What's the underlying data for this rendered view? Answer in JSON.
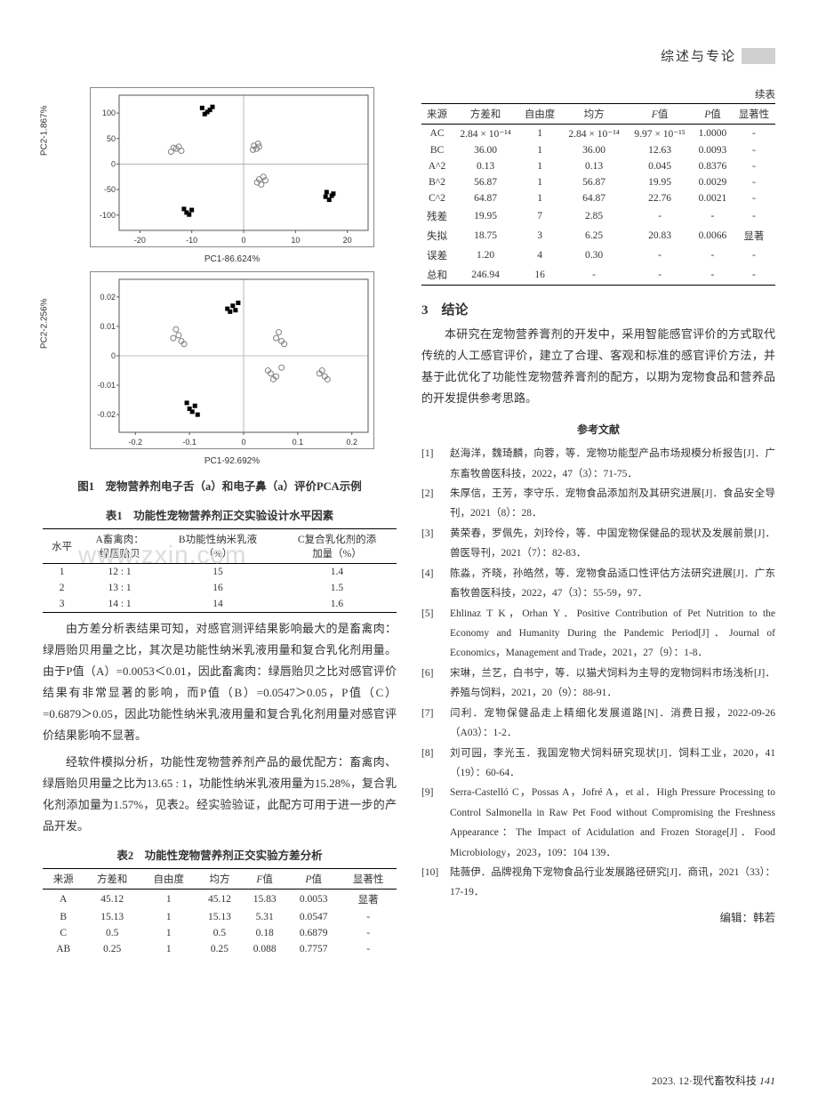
{
  "header": {
    "section": "综述与专论"
  },
  "chart_a": {
    "type": "scatter",
    "xlabel": "PC1-86.624%",
    "ylabel": "PC2-1.867%",
    "xticks": [
      -20,
      -10,
      0,
      10,
      20
    ],
    "yticks": [
      -100,
      -50,
      0,
      50,
      100
    ],
    "xlim": [
      -24,
      24
    ],
    "ylim": [
      -130,
      135
    ],
    "groups": [
      {
        "shape": "square",
        "color": "#000000",
        "points": [
          [
            -8,
            110
          ],
          [
            -7,
            102
          ],
          [
            -6.5,
            106
          ],
          [
            -6,
            112
          ],
          [
            -7.5,
            98
          ]
        ]
      },
      {
        "shape": "circle",
        "color": "#808080",
        "points": [
          [
            -13,
            30
          ],
          [
            -12,
            26
          ],
          [
            -12.5,
            34
          ],
          [
            -14,
            24
          ],
          [
            -13.5,
            32
          ]
        ]
      },
      {
        "shape": "circle",
        "color": "#808080",
        "points": [
          [
            2,
            36
          ],
          [
            2.5,
            30
          ],
          [
            3,
            34
          ],
          [
            2.8,
            40
          ],
          [
            1.8,
            28
          ]
        ]
      },
      {
        "shape": "circle",
        "color": "#808080",
        "points": [
          [
            3,
            -30
          ],
          [
            3.8,
            -25
          ],
          [
            4.2,
            -32
          ],
          [
            2.6,
            -36
          ],
          [
            3.4,
            -40
          ]
        ]
      },
      {
        "shape": "square",
        "color": "#000000",
        "points": [
          [
            16,
            -55
          ],
          [
            17,
            -62
          ],
          [
            16.5,
            -70
          ],
          [
            15.8,
            -64
          ],
          [
            17.3,
            -58
          ]
        ]
      },
      {
        "shape": "square",
        "color": "#000000",
        "points": [
          [
            -11,
            -95
          ],
          [
            -10,
            -90
          ],
          [
            -10.5,
            -99
          ],
          [
            -11.5,
            -88
          ]
        ]
      }
    ],
    "border_color": "#555555",
    "background": "#ffffff"
  },
  "chart_b": {
    "type": "scatter",
    "xlabel": "PC1-92.692%",
    "ylabel": "PC2-2.256%",
    "xticks": [
      -0.2,
      -0.1,
      0,
      0.1,
      0.2
    ],
    "yticks": [
      -0.02,
      -0.01,
      0,
      0.01,
      0.02
    ],
    "xlim": [
      -0.23,
      0.23
    ],
    "ylim": [
      -0.026,
      0.026
    ],
    "groups": [
      {
        "shape": "square",
        "color": "#000000",
        "points": [
          [
            -0.03,
            0.016
          ],
          [
            -0.02,
            0.017
          ],
          [
            -0.015,
            0.0155
          ],
          [
            -0.025,
            0.015
          ],
          [
            -0.01,
            0.018
          ]
        ]
      },
      {
        "shape": "circle",
        "color": "#808080",
        "points": [
          [
            -0.12,
            0.007
          ],
          [
            -0.115,
            0.005
          ],
          [
            -0.125,
            0.009
          ],
          [
            -0.13,
            0.006
          ],
          [
            -0.11,
            0.004
          ]
        ]
      },
      {
        "shape": "circle",
        "color": "#808080",
        "points": [
          [
            0.06,
            0.006
          ],
          [
            0.07,
            0.005
          ],
          [
            0.065,
            0.008
          ],
          [
            0.075,
            0.004
          ]
        ]
      },
      {
        "shape": "circle",
        "color": "#808080",
        "points": [
          [
            0.05,
            -0.006
          ],
          [
            0.06,
            -0.007
          ],
          [
            0.045,
            -0.005
          ],
          [
            0.055,
            -0.008
          ],
          [
            0.07,
            -0.004
          ]
        ]
      },
      {
        "shape": "circle",
        "color": "#808080",
        "points": [
          [
            0.14,
            -0.006
          ],
          [
            0.15,
            -0.007
          ],
          [
            0.145,
            -0.005
          ],
          [
            0.155,
            -0.008
          ]
        ]
      },
      {
        "shape": "square",
        "color": "#000000",
        "points": [
          [
            -0.1,
            -0.018
          ],
          [
            -0.09,
            -0.017
          ],
          [
            -0.095,
            -0.019
          ],
          [
            -0.105,
            -0.016
          ],
          [
            -0.085,
            -0.02
          ]
        ]
      }
    ],
    "border_color": "#555555",
    "background": "#ffffff"
  },
  "fig1_caption": "图1　宠物营养剂电子舌（a）和电子鼻（a）评价PCA示例",
  "table1": {
    "caption": "表1　功能性宠物营养剂正交实验设计水平因素",
    "columns": [
      "水平",
      "A畜禽肉：\n绿唇贻贝",
      "B功能性纳米乳液\n（%）",
      "C复合乳化剂的添\n加量（%）"
    ],
    "rows": [
      [
        "1",
        "12 : 1",
        "15",
        "1.4"
      ],
      [
        "2",
        "13 : 1",
        "16",
        "1.5"
      ],
      [
        "3",
        "14 : 1",
        "14",
        "1.6"
      ]
    ],
    "watermark": "www.zxin.com"
  },
  "para1": "由方差分析表结果可知，对感官测评结果影响最大的是畜禽肉：绿唇贻贝用量之比，其次是功能性纳米乳液用量和复合乳化剂用量。由于P值（A）=0.0053＜0.01，因此畜禽肉：绿唇贻贝之比对感官评价结果有非常显著的影响，而P值（B）=0.0547＞0.05，P值（C）=0.6879＞0.05，因此功能性纳米乳液用量和复合乳化剂用量对感官评价结果影响不显著。",
  "para2": "经软件模拟分析，功能性宠物营养剂产品的最优配方：畜禽肉、绿唇贻贝用量之比为13.65 : 1，功能性纳米乳液用量为15.28%，复合乳化剂添加量为1.57%，见表2。经实验验证，此配方可用于进一步的产品开发。",
  "table2": {
    "caption": "表2　功能性宠物营养剂正交实验方差分析",
    "columns": [
      "来源",
      "方差和",
      "自由度",
      "均方",
      "F值",
      "P值",
      "显著性"
    ],
    "rows": [
      [
        "A",
        "45.12",
        "1",
        "45.12",
        "15.83",
        "0.0053",
        "显著"
      ],
      [
        "B",
        "15.13",
        "1",
        "15.13",
        "5.31",
        "0.0547",
        "-"
      ],
      [
        "C",
        "0.5",
        "1",
        "0.5",
        "0.18",
        "0.6879",
        "-"
      ],
      [
        "AB",
        "0.25",
        "1",
        "0.25",
        "0.088",
        "0.7757",
        "-"
      ]
    ]
  },
  "table3": {
    "continued": "续表",
    "columns": [
      "来源",
      "方差和",
      "自由度",
      "均方",
      "F值",
      "P值",
      "显著性"
    ],
    "rows": [
      [
        "AC",
        "2.84 × 10⁻¹⁴",
        "1",
        "2.84 × 10⁻¹⁴",
        "9.97 × 10⁻¹⁵",
        "1.0000",
        "-"
      ],
      [
        "BC",
        "36.00",
        "1",
        "36.00",
        "12.63",
        "0.0093",
        "-"
      ],
      [
        "A^2",
        "0.13",
        "1",
        "0.13",
        "0.045",
        "0.8376",
        "-"
      ],
      [
        "B^2",
        "56.87",
        "1",
        "56.87",
        "19.95",
        "0.0029",
        "-"
      ],
      [
        "C^2",
        "64.87",
        "1",
        "64.87",
        "22.76",
        "0.0021",
        "-"
      ],
      [
        "残差",
        "19.95",
        "7",
        "2.85",
        "-",
        "-",
        "-"
      ],
      [
        "失拟",
        "18.75",
        "3",
        "6.25",
        "20.83",
        "0.0066",
        "显著"
      ],
      [
        "误差",
        "1.20",
        "4",
        "0.30",
        "-",
        "-",
        "-"
      ],
      [
        "总和",
        "246.94",
        "16",
        "-",
        "-",
        "-",
        "-"
      ]
    ]
  },
  "section3": {
    "title": "3　结论",
    "body": "本研究在宠物营养膏剂的开发中，采用智能感官评价的方式取代传统的人工感官评价，建立了合理、客观和标准的感官评价方法，并基于此优化了功能性宠物营养膏剂的配方，以期为宠物食品和营养品的开发提供参考思路。"
  },
  "references": {
    "title": "参考文献",
    "items": [
      "赵海洋，魏琦麟，向蓉，等．宠物功能型产品市场规模分析报告[J]．广东畜牧兽医科技，2022，47（3）：71-75．",
      "朱厚信，王芳，李守乐．宠物食品添加剂及其研究进展[J]．食品安全导刊，2021（8）：28．",
      "黄荣春，罗佩先，刘玲伶，等．中国宠物保健品的现状及发展前景[J]．兽医导刊，2021（7）：82-83．",
      "陈淼，齐晓，孙皓然，等．宠物食品适口性评估方法研究进展[J]．广东畜牧兽医科技，2022，47（3）：55-59，97．",
      "Ehlinaz T K，Orhan Y．Positive Contribution of Pet Nutrition to the Economy and Humanity During the Pandemic Period[J]．Journal of Economics，Management and Trade，2021，27（9）：1-8．",
      "宋琳，兰艺，白书宁，等．以猫犬饲料为主导的宠物饲料市场浅析[J]．养殖与饲料，2021，20（9）：88-91．",
      "闫利．宠物保健品走上精细化发展道路[N]．消费日报，2022-09-26（A03）：1-2．",
      "刘可园，李光玉．我国宠物犬饲料研究现状[J]．饲料工业，2020，41（19）：60-64．",
      "Serra-Castelló C，Possas A，Jofré A，et al．High Pressure Processing to Control Salmonella in Raw Pet Food without Compromising the Freshness Appearance：The Impact of Acidulation and Frozen Storage[J]．Food Microbiology，2023，109：104 139．",
      "陆薇伊．品牌视角下宠物食品行业发展路径研究[J]．商讯，2021（33）：17-19．"
    ]
  },
  "editor": "编辑：韩若",
  "footer": {
    "issue": "2023. 12·现代畜牧科技",
    "page": "141"
  }
}
